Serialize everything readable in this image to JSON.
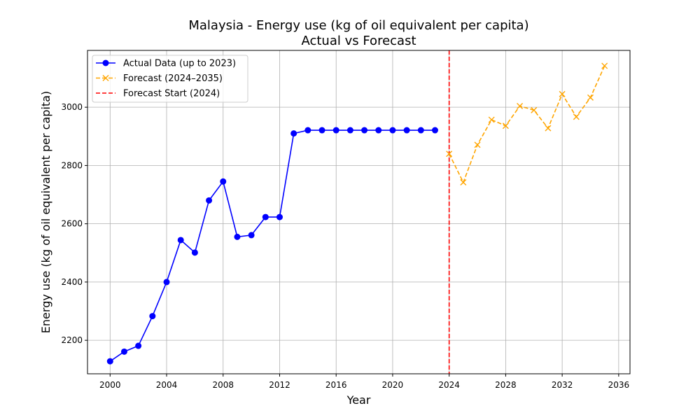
{
  "chart_data": {
    "type": "line",
    "title": "Malaysia - Energy use (kg of oil equivalent per capita)",
    "subtitle": "Actual vs Forecast",
    "xlabel": "Year",
    "ylabel": "Energy use (kg of oil equivalent per capita)",
    "xlim": [
      1998.4,
      2036.8
    ],
    "ylim": [
      2085,
      3195
    ],
    "x_ticks": [
      2000,
      2004,
      2008,
      2012,
      2016,
      2020,
      2024,
      2028,
      2032,
      2036
    ],
    "y_ticks": [
      2200,
      2400,
      2600,
      2800,
      3000
    ],
    "grid": true,
    "legend_position": "top-left",
    "series": [
      {
        "name": "Actual Data (up to 2023)",
        "color": "#0000ff",
        "style": "solid",
        "marker": "circle",
        "x": [
          2000,
          2001,
          2002,
          2003,
          2004,
          2005,
          2006,
          2007,
          2008,
          2009,
          2010,
          2011,
          2012,
          2013,
          2014,
          2015,
          2016,
          2017,
          2018,
          2019,
          2020,
          2021,
          2022,
          2023
        ],
        "y": [
          2128,
          2161,
          2181,
          2283,
          2400,
          2544,
          2501,
          2680,
          2745,
          2555,
          2561,
          2623,
          2623,
          2910,
          2921,
          2921,
          2921,
          2921,
          2921,
          2921,
          2921,
          2921,
          2921,
          2921
        ]
      },
      {
        "name": "Forecast (2024–2035)",
        "color": "#ffa500",
        "style": "dashed",
        "marker": "x",
        "x": [
          2024,
          2025,
          2026,
          2027,
          2028,
          2029,
          2030,
          2031,
          2032,
          2033,
          2034,
          2035
        ],
        "y": [
          2840,
          2742,
          2871,
          2957,
          2936,
          3004,
          2990,
          2928,
          3045,
          2967,
          3033,
          3142
        ]
      }
    ],
    "vlines": [
      {
        "name": "Forecast Start (2024)",
        "x": 2024,
        "color": "#ff0000",
        "style": "dashed"
      }
    ]
  }
}
